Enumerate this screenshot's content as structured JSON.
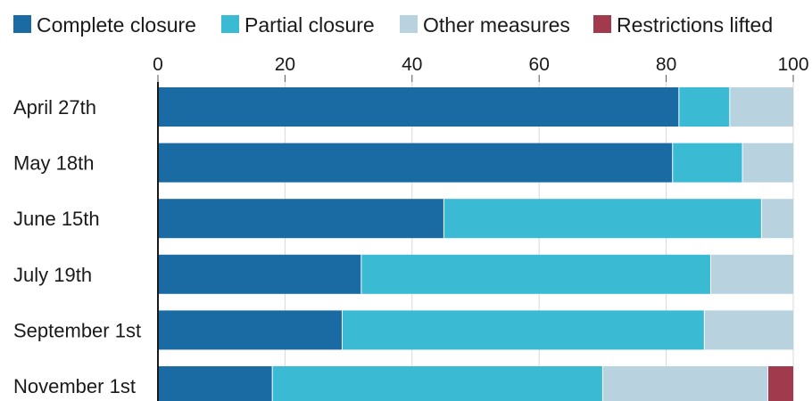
{
  "chart_data": {
    "type": "bar",
    "orientation": "horizontal",
    "stacked": true,
    "title": "",
    "xlabel": "",
    "ylabel": "",
    "xlim": [
      0,
      100
    ],
    "x_ticks": [
      "0",
      "20",
      "40",
      "60",
      "80",
      "100"
    ],
    "x_tick_values": [
      0,
      20,
      40,
      60,
      80,
      100
    ],
    "grid": "vertical",
    "legend_position": "top",
    "categories": [
      "April 27th",
      "May 18th",
      "June 15th",
      "July 19th",
      "September 1st",
      "November 1st"
    ],
    "series": [
      {
        "name": "Complete closure",
        "color": "#1a6aa3",
        "values": [
          82,
          81,
          45,
          32,
          29,
          18
        ]
      },
      {
        "name": "Partial closure",
        "color": "#3bbad4",
        "values": [
          8,
          11,
          50,
          55,
          57,
          52
        ]
      },
      {
        "name": "Other measures",
        "color": "#b8d3df",
        "values": [
          10,
          8,
          5,
          13,
          14,
          26
        ]
      },
      {
        "name": "Restrictions lifted",
        "color": "#a23a4d",
        "values": [
          0,
          0,
          0,
          0,
          0,
          4
        ]
      }
    ]
  }
}
